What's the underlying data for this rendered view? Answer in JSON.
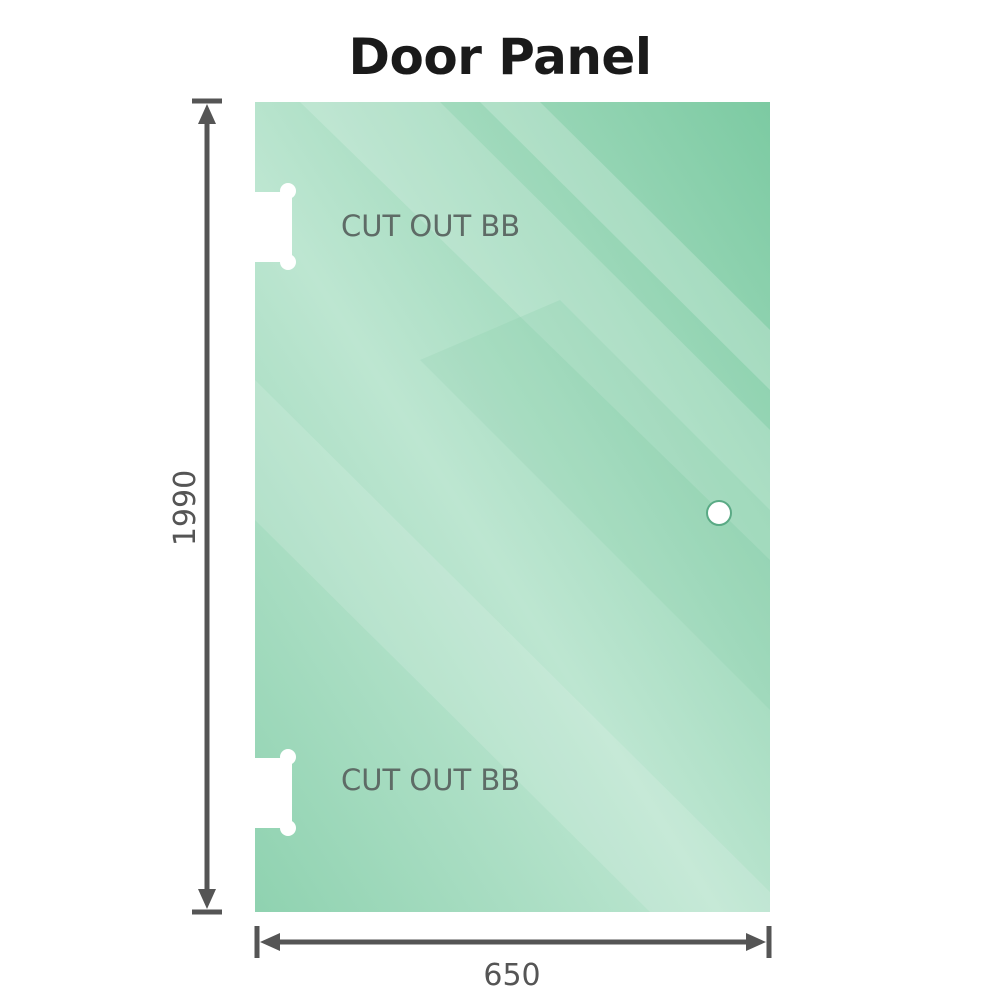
{
  "title": "Door Panel",
  "cutout_top_label": "CUT OUT BB",
  "cutout_bottom_label": "CUT OUT BB",
  "height_dimension": "1990",
  "width_dimension": "650",
  "colors": {
    "glass": "#7fcba4",
    "glass_light": "#bfe6d2",
    "dimension_line": "#555555"
  }
}
